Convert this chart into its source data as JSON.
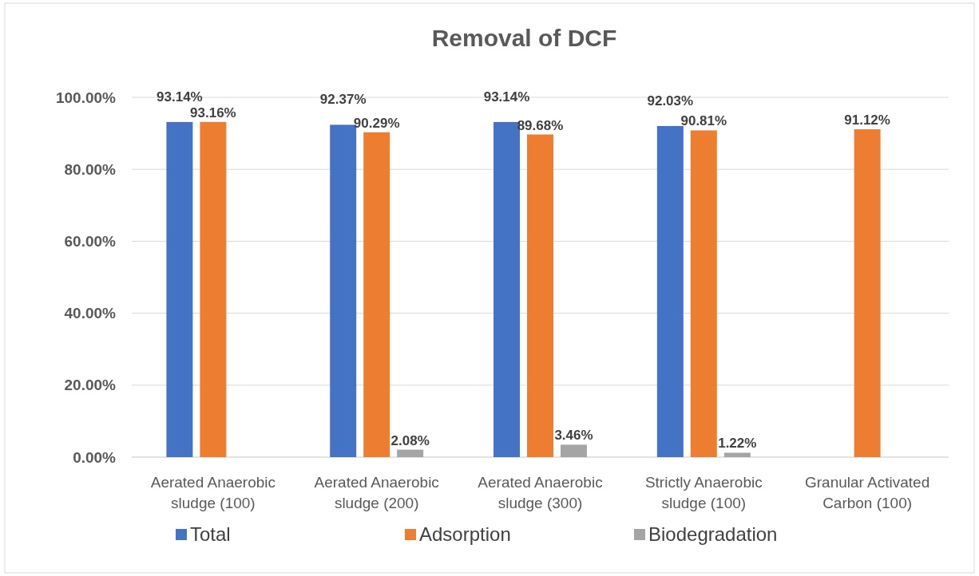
{
  "chart_data": {
    "type": "bar",
    "title": "Removal of DCF",
    "categories": [
      "Aerated Anaerobic sludge (100)",
      "Aerated Anaerobic sludge (200)",
      "Aerated Anaerobic sludge (300)",
      "Strictly Anaerobic sludge (100)",
      "Granular Activated Carbon (100)"
    ],
    "series": [
      {
        "name": "Total",
        "color": "#4472c4",
        "values": [
          93.14,
          92.37,
          93.14,
          92.03,
          null
        ],
        "value_labels": [
          "93.14%",
          "92.37%",
          "93.14%",
          "92.03%",
          null
        ]
      },
      {
        "name": "Adsorption",
        "color": "#ed7d31",
        "values": [
          93.16,
          90.29,
          89.68,
          90.81,
          91.12
        ],
        "value_labels": [
          "93.16%",
          "90.29%",
          "89.68%",
          "90.81%",
          "91.12%"
        ]
      },
      {
        "name": "Biodegradation",
        "color": "#a5a5a5",
        "values": [
          null,
          2.08,
          3.46,
          1.22,
          null
        ],
        "value_labels": [
          null,
          "2.08%",
          "3.46%",
          "1.22%",
          null
        ]
      }
    ],
    "ylim": [
      0,
      100
    ],
    "yticks": [
      {
        "value": 0,
        "label": "0.00%"
      },
      {
        "value": 20,
        "label": "20.00%"
      },
      {
        "value": 40,
        "label": "40.00%"
      },
      {
        "value": 60,
        "label": "60.00%"
      },
      {
        "value": 80,
        "label": "80.00%"
      },
      {
        "value": 100,
        "label": "100.00%"
      }
    ],
    "grid": "y",
    "legend": "bottom"
  }
}
